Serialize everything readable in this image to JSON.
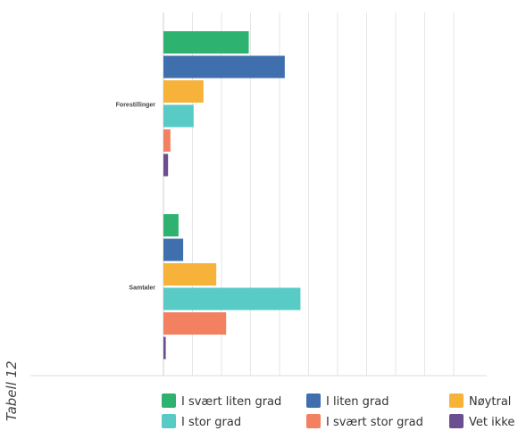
{
  "side_caption": "Tabell 12",
  "chart_data": {
    "type": "bar",
    "orientation": "horizontal",
    "categories": [
      "Forestillinger",
      "Samtaler"
    ],
    "series": [
      {
        "name": "I svært liten grad",
        "color": "#2db36f",
        "values": [
          0.147,
          0.026
        ]
      },
      {
        "name": "I liten grad",
        "color": "#3f6fad",
        "values": [
          0.209,
          0.034
        ]
      },
      {
        "name": "Nøytral",
        "color": "#f7b339",
        "values": [
          0.069,
          0.091
        ]
      },
      {
        "name": "I stor grad",
        "color": "#58cbc6",
        "values": [
          0.052,
          0.236
        ]
      },
      {
        "name": "I svært stor grad",
        "color": "#f38060",
        "values": [
          0.012,
          0.108
        ]
      },
      {
        "name": "Vet ikke",
        "color": "#6b4e8f",
        "values": [
          0.008,
          0.004
        ]
      }
    ],
    "xlim": [
      0,
      0.5
    ],
    "grid": true,
    "legend_position": "bottom"
  }
}
